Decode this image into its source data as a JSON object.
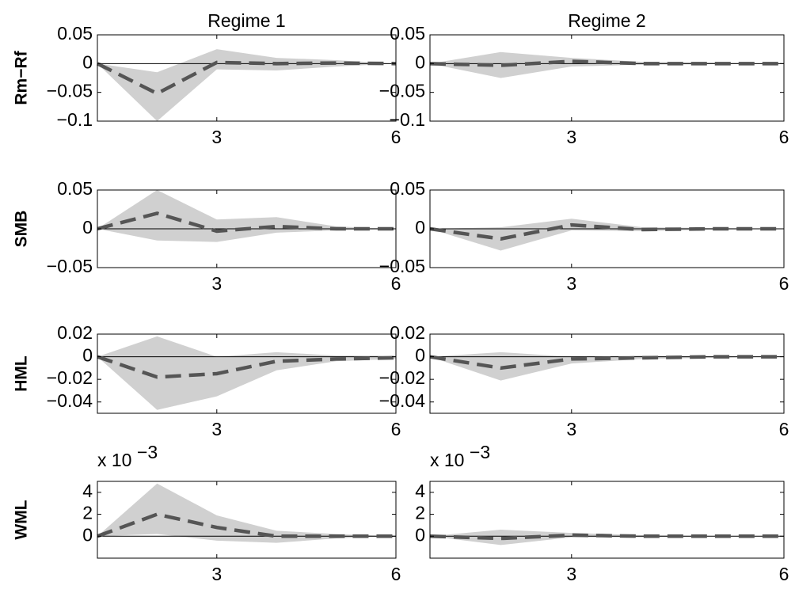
{
  "chart_data": [
    {
      "type": "line",
      "title": "Regime 1",
      "ylabel": "Rm−Rf",
      "x": [
        1,
        2,
        3,
        4,
        5,
        6
      ],
      "xlim": [
        1,
        6
      ],
      "xticks": [
        3,
        6
      ],
      "ylim": [
        -0.1,
        0.05
      ],
      "yticks": [
        {
          "value": -0.1,
          "label": "−0.1"
        },
        {
          "value": -0.05,
          "label": "−0.05"
        },
        0,
        0.05
      ],
      "hline": 0,
      "color": "#555555",
      "band_color": "#d0d0d0",
      "values": [
        0,
        -0.052,
        0.002,
        0,
        0.001,
        0
      ],
      "band": {
        "lower": [
          0,
          -0.1,
          -0.01,
          -0.012,
          -0.005,
          0
        ],
        "upper": [
          0,
          -0.015,
          0.025,
          0.01,
          0.006,
          0
        ]
      }
    },
    {
      "type": "line",
      "title": "Regime 2",
      "x": [
        1,
        2,
        3,
        4,
        5,
        6
      ],
      "xlim": [
        1,
        6
      ],
      "xticks": [
        3,
        6
      ],
      "ylim": [
        -0.1,
        0.05
      ],
      "yticks": [
        {
          "value": -0.1,
          "label": "−0.1"
        },
        {
          "value": -0.05,
          "label": "−0.05"
        },
        0,
        0.05
      ],
      "hline": 0,
      "color": "#555555",
      "band_color": "#d0d0d0",
      "values": [
        0,
        -0.003,
        0.004,
        0,
        0,
        0
      ],
      "band": {
        "lower": [
          0,
          -0.025,
          -0.005,
          -0.002,
          -0.001,
          0
        ],
        "upper": [
          0,
          0.02,
          0.01,
          0.003,
          0.002,
          0
        ]
      }
    },
    {
      "type": "line",
      "ylabel": "SMB",
      "x": [
        1,
        2,
        3,
        4,
        5,
        6
      ],
      "xlim": [
        1,
        6
      ],
      "xticks": [
        3,
        6
      ],
      "ylim": [
        -0.05,
        0.05
      ],
      "yticks": [
        {
          "value": -0.05,
          "label": "−0.05"
        },
        0,
        0.05
      ],
      "hline": 0,
      "color": "#555555",
      "band_color": "#d0d0d0",
      "values": [
        0,
        0.02,
        -0.003,
        0.003,
        0,
        0
      ],
      "band": {
        "lower": [
          0,
          -0.015,
          -0.017,
          -0.005,
          -0.002,
          0
        ],
        "upper": [
          0,
          0.05,
          0.012,
          0.015,
          0.003,
          0
        ]
      }
    },
    {
      "type": "line",
      "x": [
        1,
        2,
        3,
        4,
        5,
        6
      ],
      "xlim": [
        1,
        6
      ],
      "xticks": [
        3,
        6
      ],
      "ylim": [
        -0.05,
        0.05
      ],
      "yticks": [
        {
          "value": -0.05,
          "label": "−0.05"
        },
        0,
        0.05
      ],
      "hline": 0,
      "color": "#555555",
      "band_color": "#d0d0d0",
      "values": [
        0,
        -0.013,
        0.005,
        -0.001,
        0,
        0
      ],
      "band": {
        "lower": [
          0,
          -0.028,
          -0.002,
          -0.003,
          -0.001,
          0
        ],
        "upper": [
          0,
          0.002,
          0.013,
          0.002,
          0.001,
          0
        ]
      }
    },
    {
      "type": "line",
      "ylabel": "HML",
      "x": [
        1,
        2,
        3,
        4,
        5,
        6
      ],
      "xlim": [
        1,
        6
      ],
      "xticks": [
        3,
        6
      ],
      "ylim": [
        -0.05,
        0.02
      ],
      "yticks": [
        {
          "value": -0.04,
          "label": "−0.04"
        },
        {
          "value": -0.02,
          "label": "−0.02"
        },
        0,
        0.02
      ],
      "hline": 0,
      "color": "#555555",
      "band_color": "#d0d0d0",
      "values": [
        0,
        -0.018,
        -0.015,
        -0.004,
        -0.002,
        -0.001
      ],
      "band": {
        "lower": [
          0,
          -0.047,
          -0.035,
          -0.012,
          -0.004,
          -0.002
        ],
        "upper": [
          0,
          0.018,
          0,
          0.004,
          0.001,
          0.001
        ]
      }
    },
    {
      "type": "line",
      "x": [
        1,
        2,
        3,
        4,
        5,
        6
      ],
      "xlim": [
        1,
        6
      ],
      "xticks": [
        3,
        6
      ],
      "ylim": [
        -0.05,
        0.02
      ],
      "yticks": [
        {
          "value": -0.04,
          "label": "−0.04"
        },
        {
          "value": -0.02,
          "label": "−0.02"
        },
        0,
        0.02
      ],
      "hline": 0,
      "color": "#555555",
      "band_color": "#d0d0d0",
      "values": [
        0,
        -0.01,
        -0.002,
        -0.001,
        0,
        0
      ],
      "band": {
        "lower": [
          0,
          -0.021,
          -0.006,
          -0.002,
          -0.001,
          0
        ],
        "upper": [
          0,
          0.004,
          0,
          0.001,
          0,
          0
        ]
      }
    },
    {
      "type": "line",
      "ylabel": "WML",
      "scale_label": "x 10",
      "scale_exponent": "−3",
      "x": [
        1,
        2,
        3,
        4,
        5,
        6
      ],
      "xlim": [
        1,
        6
      ],
      "xticks": [
        3,
        6
      ],
      "ylim": [
        -2,
        5
      ],
      "yticks": [
        0,
        2,
        4
      ],
      "hline": 0,
      "color": "#555555",
      "band_color": "#d0d0d0",
      "values": [
        0,
        2,
        0.8,
        0,
        0,
        0
      ],
      "band": {
        "lower": [
          0,
          0.2,
          -0.4,
          -0.6,
          -0.2,
          0
        ],
        "upper": [
          0,
          4.8,
          1.9,
          0.5,
          0.2,
          0
        ]
      }
    },
    {
      "type": "line",
      "scale_label": "x 10",
      "scale_exponent": "−3",
      "x": [
        1,
        2,
        3,
        4,
        5,
        6
      ],
      "xlim": [
        1,
        6
      ],
      "xticks": [
        3,
        6
      ],
      "ylim": [
        -2,
        5
      ],
      "yticks": [
        0,
        2,
        4
      ],
      "hline": 0,
      "color": "#555555",
      "band_color": "#d0d0d0",
      "values": [
        0,
        -0.2,
        0.1,
        0,
        0,
        0
      ],
      "band": {
        "lower": [
          0,
          -0.8,
          -0.1,
          -0.1,
          0,
          0
        ],
        "upper": [
          0,
          0.6,
          0.3,
          0.1,
          0,
          0
        ]
      }
    }
  ]
}
